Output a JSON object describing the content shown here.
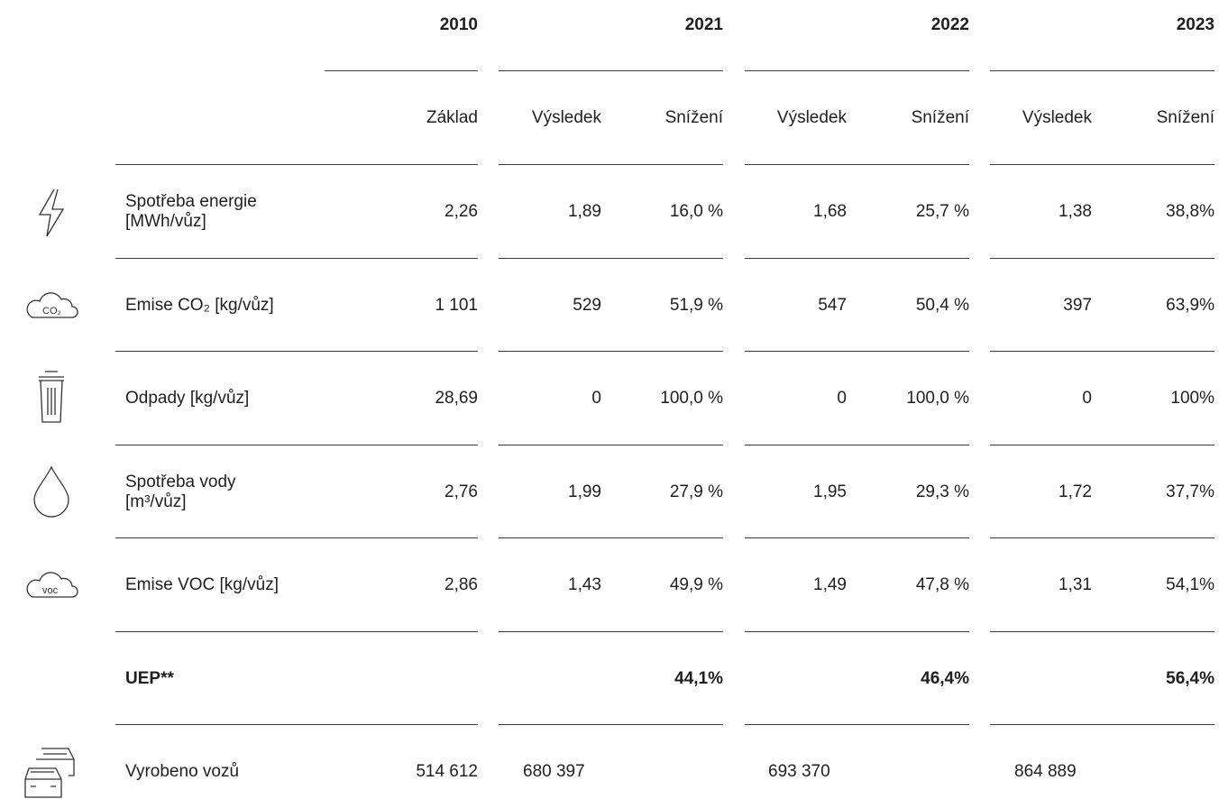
{
  "table": {
    "years": [
      "2010",
      "2021",
      "2022",
      "2023"
    ],
    "subheaders": [
      "Základ",
      "Výsledek",
      "Snížení",
      "Výsledek",
      "Snížení",
      "Výsledek",
      "Snížení"
    ],
    "icon_labels": [
      "CO₂",
      "voc"
    ],
    "rows": [
      {
        "label": [
          "Spotřeba energie",
          "[MWh/vůz]"
        ],
        "cells": [
          "2,26",
          "1,89",
          "16,0 %",
          "1,68",
          "25,7 %",
          "1,38",
          "38,8%"
        ]
      },
      {
        "label": [
          "Emise CO₂ [kg/vůz]"
        ],
        "cells": [
          "1 101",
          "529",
          "51,9 %",
          "547",
          "50,4 %",
          "397",
          "63,9%"
        ]
      },
      {
        "label": [
          "Odpady [kg/vůz]"
        ],
        "cells": [
          "28,69",
          "0",
          "100,0 %",
          "0",
          "100,0 %",
          "0",
          "100%"
        ]
      },
      {
        "label": [
          "Spotřeba vody",
          "[m³/vůz]"
        ],
        "cells": [
          "2,76",
          "1,99",
          "27,9 %",
          "1,95",
          "29,3 %",
          "1,72",
          "37,7%"
        ]
      },
      {
        "label": [
          "Emise VOC [kg/vůz]"
        ],
        "cells": [
          "2,86",
          "1,43",
          "49,9 %",
          "1,49",
          "47,8 %",
          "1,31",
          "54,1%"
        ]
      }
    ],
    "uep": {
      "label": "UEP**",
      "values": [
        "44,1%",
        "46,4%",
        "56,4%"
      ]
    },
    "produced": {
      "label": "Vyrobeno vozů",
      "values": [
        "514 612",
        "680 397",
        "693 370",
        "864 889"
      ]
    }
  }
}
